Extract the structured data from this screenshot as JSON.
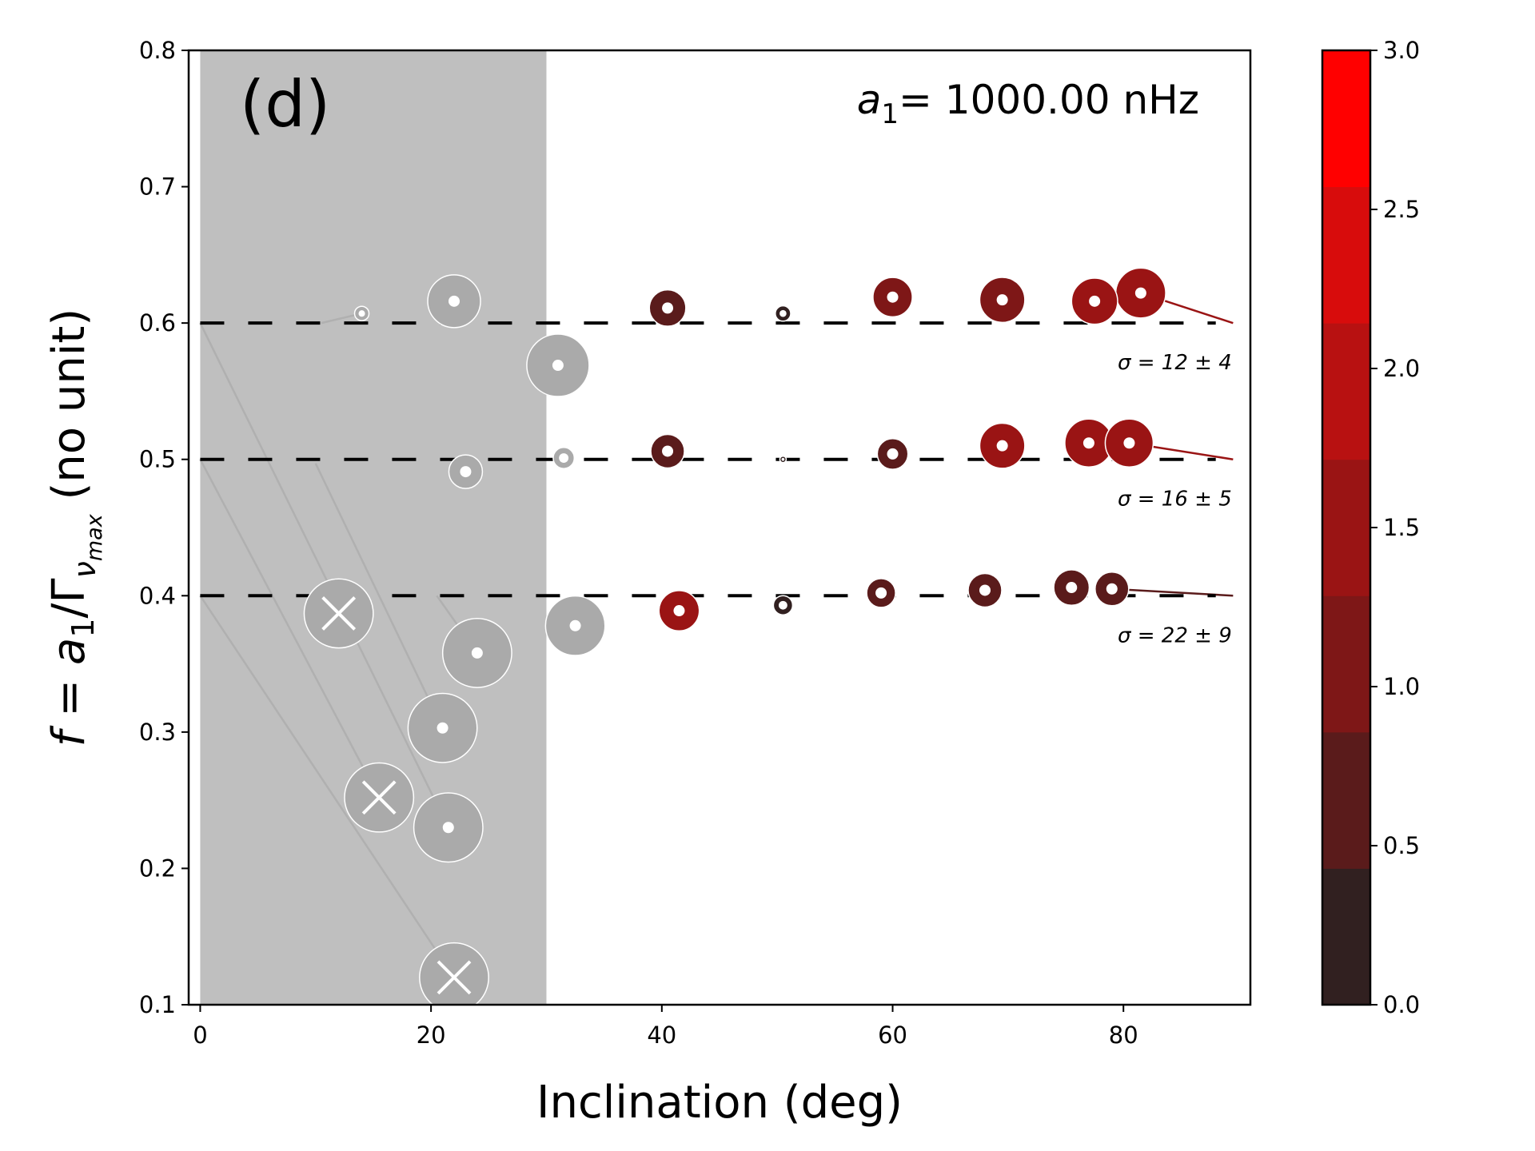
{
  "chart_data": {
    "type": "scatter",
    "panel_label": "(d)",
    "param_label": {
      "symbol": "a",
      "subscript": "1",
      "text": "= 1000.00 nHz"
    },
    "xlabel": "Inclination (deg)",
    "ylabel": {
      "prefix": "f = a",
      "sub1": "1",
      "mid": "/Γ",
      "sub2": "ν",
      "sub3": "max",
      "suffix": " (no unit)"
    },
    "xlim": [
      -1,
      91
    ],
    "ylim": [
      0.1,
      0.8
    ],
    "x_ticks": [
      {
        "value": 0,
        "label": "0"
      },
      {
        "value": 20,
        "label": "20"
      },
      {
        "value": 40,
        "label": "40"
      },
      {
        "value": 60,
        "label": "60"
      },
      {
        "value": 80,
        "label": "80"
      }
    ],
    "y_ticks": [
      {
        "value": 0.1,
        "label": "0.1"
      },
      {
        "value": 0.2,
        "label": "0.2"
      },
      {
        "value": 0.3,
        "label": "0.3"
      },
      {
        "value": 0.4,
        "label": "0.4"
      },
      {
        "value": 0.5,
        "label": "0.5"
      },
      {
        "value": 0.6,
        "label": "0.6"
      },
      {
        "value": 0.7,
        "label": "0.7"
      },
      {
        "value": 0.8,
        "label": "0.8"
      }
    ],
    "excluded_region": {
      "x_from": 0,
      "x_to": 30,
      "color": "#bfbfbf"
    },
    "reference_lines": [
      {
        "y": 0.6,
        "x_from": 0,
        "x_to": 88,
        "sigma_label": "σ = 12 ± 4"
      },
      {
        "y": 0.5,
        "x_from": 0,
        "x_to": 88,
        "sigma_label": "σ = 16 ± 5"
      },
      {
        "y": 0.4,
        "x_from": 0,
        "x_to": 88,
        "sigma_label": "σ = 22 ± 9"
      }
    ],
    "colorbar": {
      "min": 0,
      "max": 3,
      "ticks": [
        "0.0",
        "0.5",
        "1.0",
        "1.5",
        "2.0",
        "2.5",
        "3.0"
      ],
      "colors": [
        "#312020",
        "#5a1b1b",
        "#7e1717",
        "#9a1414",
        "#b81111",
        "#d80c0c",
        "#ff0000"
      ]
    },
    "series": [
      {
        "name": "f = 0.6",
        "true_f": 0.6,
        "points": [
          {
            "i": 14,
            "f": 0.607,
            "size": 0.15,
            "c": null,
            "excluded": false,
            "from_i": 10.5
          },
          {
            "i": 22,
            "f": 0.616,
            "size": 0.55,
            "c": null,
            "excluded": false
          },
          {
            "i": 31,
            "f": 0.569,
            "size": 0.65,
            "c": null,
            "excluded": false
          },
          {
            "i": 40.5,
            "f": 0.611,
            "size": 0.38,
            "c": 0.6,
            "excluded": false
          },
          {
            "i": 50.5,
            "f": 0.607,
            "size": 0.16,
            "c": 0.3,
            "excluded": false
          },
          {
            "i": 60,
            "f": 0.619,
            "size": 0.41,
            "c": 1.2,
            "excluded": false
          },
          {
            "i": 69.5,
            "f": 0.617,
            "size": 0.47,
            "c": 1.25,
            "excluded": false
          },
          {
            "i": 77.5,
            "f": 0.616,
            "size": 0.48,
            "c": 1.3,
            "excluded": false
          },
          {
            "i": 81.5,
            "f": 0.622,
            "size": 0.52,
            "c": 1.4,
            "excluded": false,
            "from_i": 89.5,
            "from_f": 0.6
          }
        ]
      },
      {
        "name": "f = 0.5",
        "true_f": 0.5,
        "points": [
          {
            "i": 23,
            "f": 0.491,
            "size": 0.35,
            "c": null,
            "excluded": false
          },
          {
            "i": 31.5,
            "f": 0.501,
            "size": 0.22,
            "c": null,
            "excluded": false
          },
          {
            "i": 40.5,
            "f": 0.506,
            "size": 0.35,
            "c": 0.6,
            "excluded": false
          },
          {
            "i": 50.5,
            "f": 0.5,
            "size": 0.06,
            "c": 0.3,
            "excluded": false
          },
          {
            "i": 60,
            "f": 0.504,
            "size": 0.32,
            "c": 0.6,
            "excluded": false
          },
          {
            "i": 69.5,
            "f": 0.51,
            "size": 0.47,
            "c": 1.3,
            "excluded": false
          },
          {
            "i": 77,
            "f": 0.512,
            "size": 0.5,
            "c": 1.3,
            "excluded": false
          },
          {
            "i": 80.5,
            "f": 0.512,
            "size": 0.5,
            "c": 1.4,
            "excluded": false,
            "from_i": 89.5,
            "from_f": 0.5
          }
        ]
      },
      {
        "name": "f = 0.4",
        "true_f": 0.4,
        "points": [
          {
            "i": 12,
            "f": 0.387,
            "size": 0.72,
            "c": null,
            "excluded": true
          },
          {
            "i": 24,
            "f": 0.358,
            "size": 0.72,
            "c": null,
            "excluded": false,
            "from_i": 20.5,
            "from_f": 0.4
          },
          {
            "i": 32.5,
            "f": 0.378,
            "size": 0.62,
            "c": null,
            "excluded": false
          },
          {
            "i": 21,
            "f": 0.303,
            "size": 0.72,
            "c": null,
            "excluded": false,
            "from_i": 10,
            "from_f": 0.497
          },
          {
            "i": 15.5,
            "f": 0.252,
            "size": 0.72,
            "c": null,
            "excluded": true,
            "from_i": 0,
            "from_f": 0.5
          },
          {
            "i": 21.5,
            "f": 0.23,
            "size": 0.72,
            "c": null,
            "excluded": false,
            "from_i": 0,
            "from_f": 0.6
          },
          {
            "i": 22,
            "f": 0.12,
            "size": 0.72,
            "c": null,
            "excluded": true,
            "from_i": 0,
            "from_f": 0.4
          },
          {
            "i": 41.5,
            "f": 0.389,
            "size": 0.42,
            "c": 1.4,
            "excluded": false
          },
          {
            "i": 50.5,
            "f": 0.393,
            "size": 0.2,
            "c": 0.3,
            "excluded": false
          },
          {
            "i": 59,
            "f": 0.402,
            "size": 0.3,
            "c": 0.6,
            "excluded": false
          },
          {
            "i": 68,
            "f": 0.404,
            "size": 0.35,
            "c": 0.7,
            "excluded": false
          },
          {
            "i": 75.5,
            "f": 0.406,
            "size": 0.37,
            "c": 0.7,
            "excluded": false
          },
          {
            "i": 79,
            "f": 0.405,
            "size": 0.35,
            "c": 0.6,
            "excluded": false,
            "from_i": 89.5,
            "from_f": 0.4
          }
        ]
      }
    ]
  }
}
